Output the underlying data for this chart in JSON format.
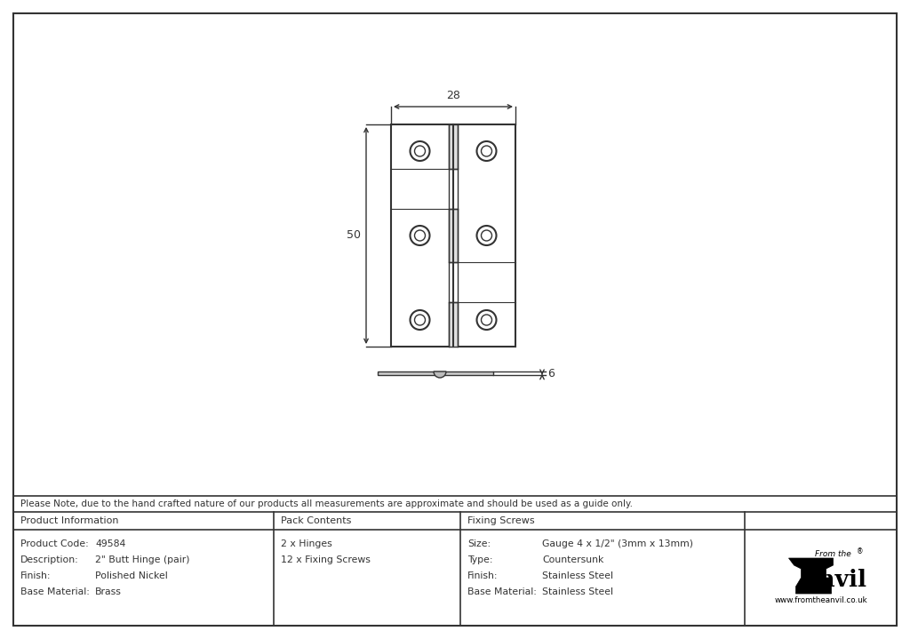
{
  "bg_color": "#ffffff",
  "drawing_color": "#333333",
  "note_text": "Please Note, due to the hand crafted nature of our products all measurements are approximate and should be used as a guide only.",
  "product_info_header": "Product Information",
  "pack_contents_header": "Pack Contents",
  "fixing_screws_header": "Fixing Screws",
  "product_fields": [
    [
      "Product Code:",
      "49584"
    ],
    [
      "Description:",
      "2\" Butt Hinge (pair)"
    ],
    [
      "Finish:",
      "Polished Nickel"
    ],
    [
      "Base Material:",
      "Brass"
    ]
  ],
  "pack_contents_fields": [
    "2 x Hinges",
    "12 x Fixing Screws"
  ],
  "fixing_screws_fields": [
    [
      "Size:",
      "Gauge 4 x 1/2\" (3mm x 13mm)"
    ],
    [
      "Type:",
      "Countersunk"
    ],
    [
      "Finish:",
      "Stainless Steel"
    ],
    [
      "Base Material:",
      "Stainless Steel"
    ]
  ],
  "dim_width": "28",
  "dim_height": "50",
  "dim_thickness": "6"
}
